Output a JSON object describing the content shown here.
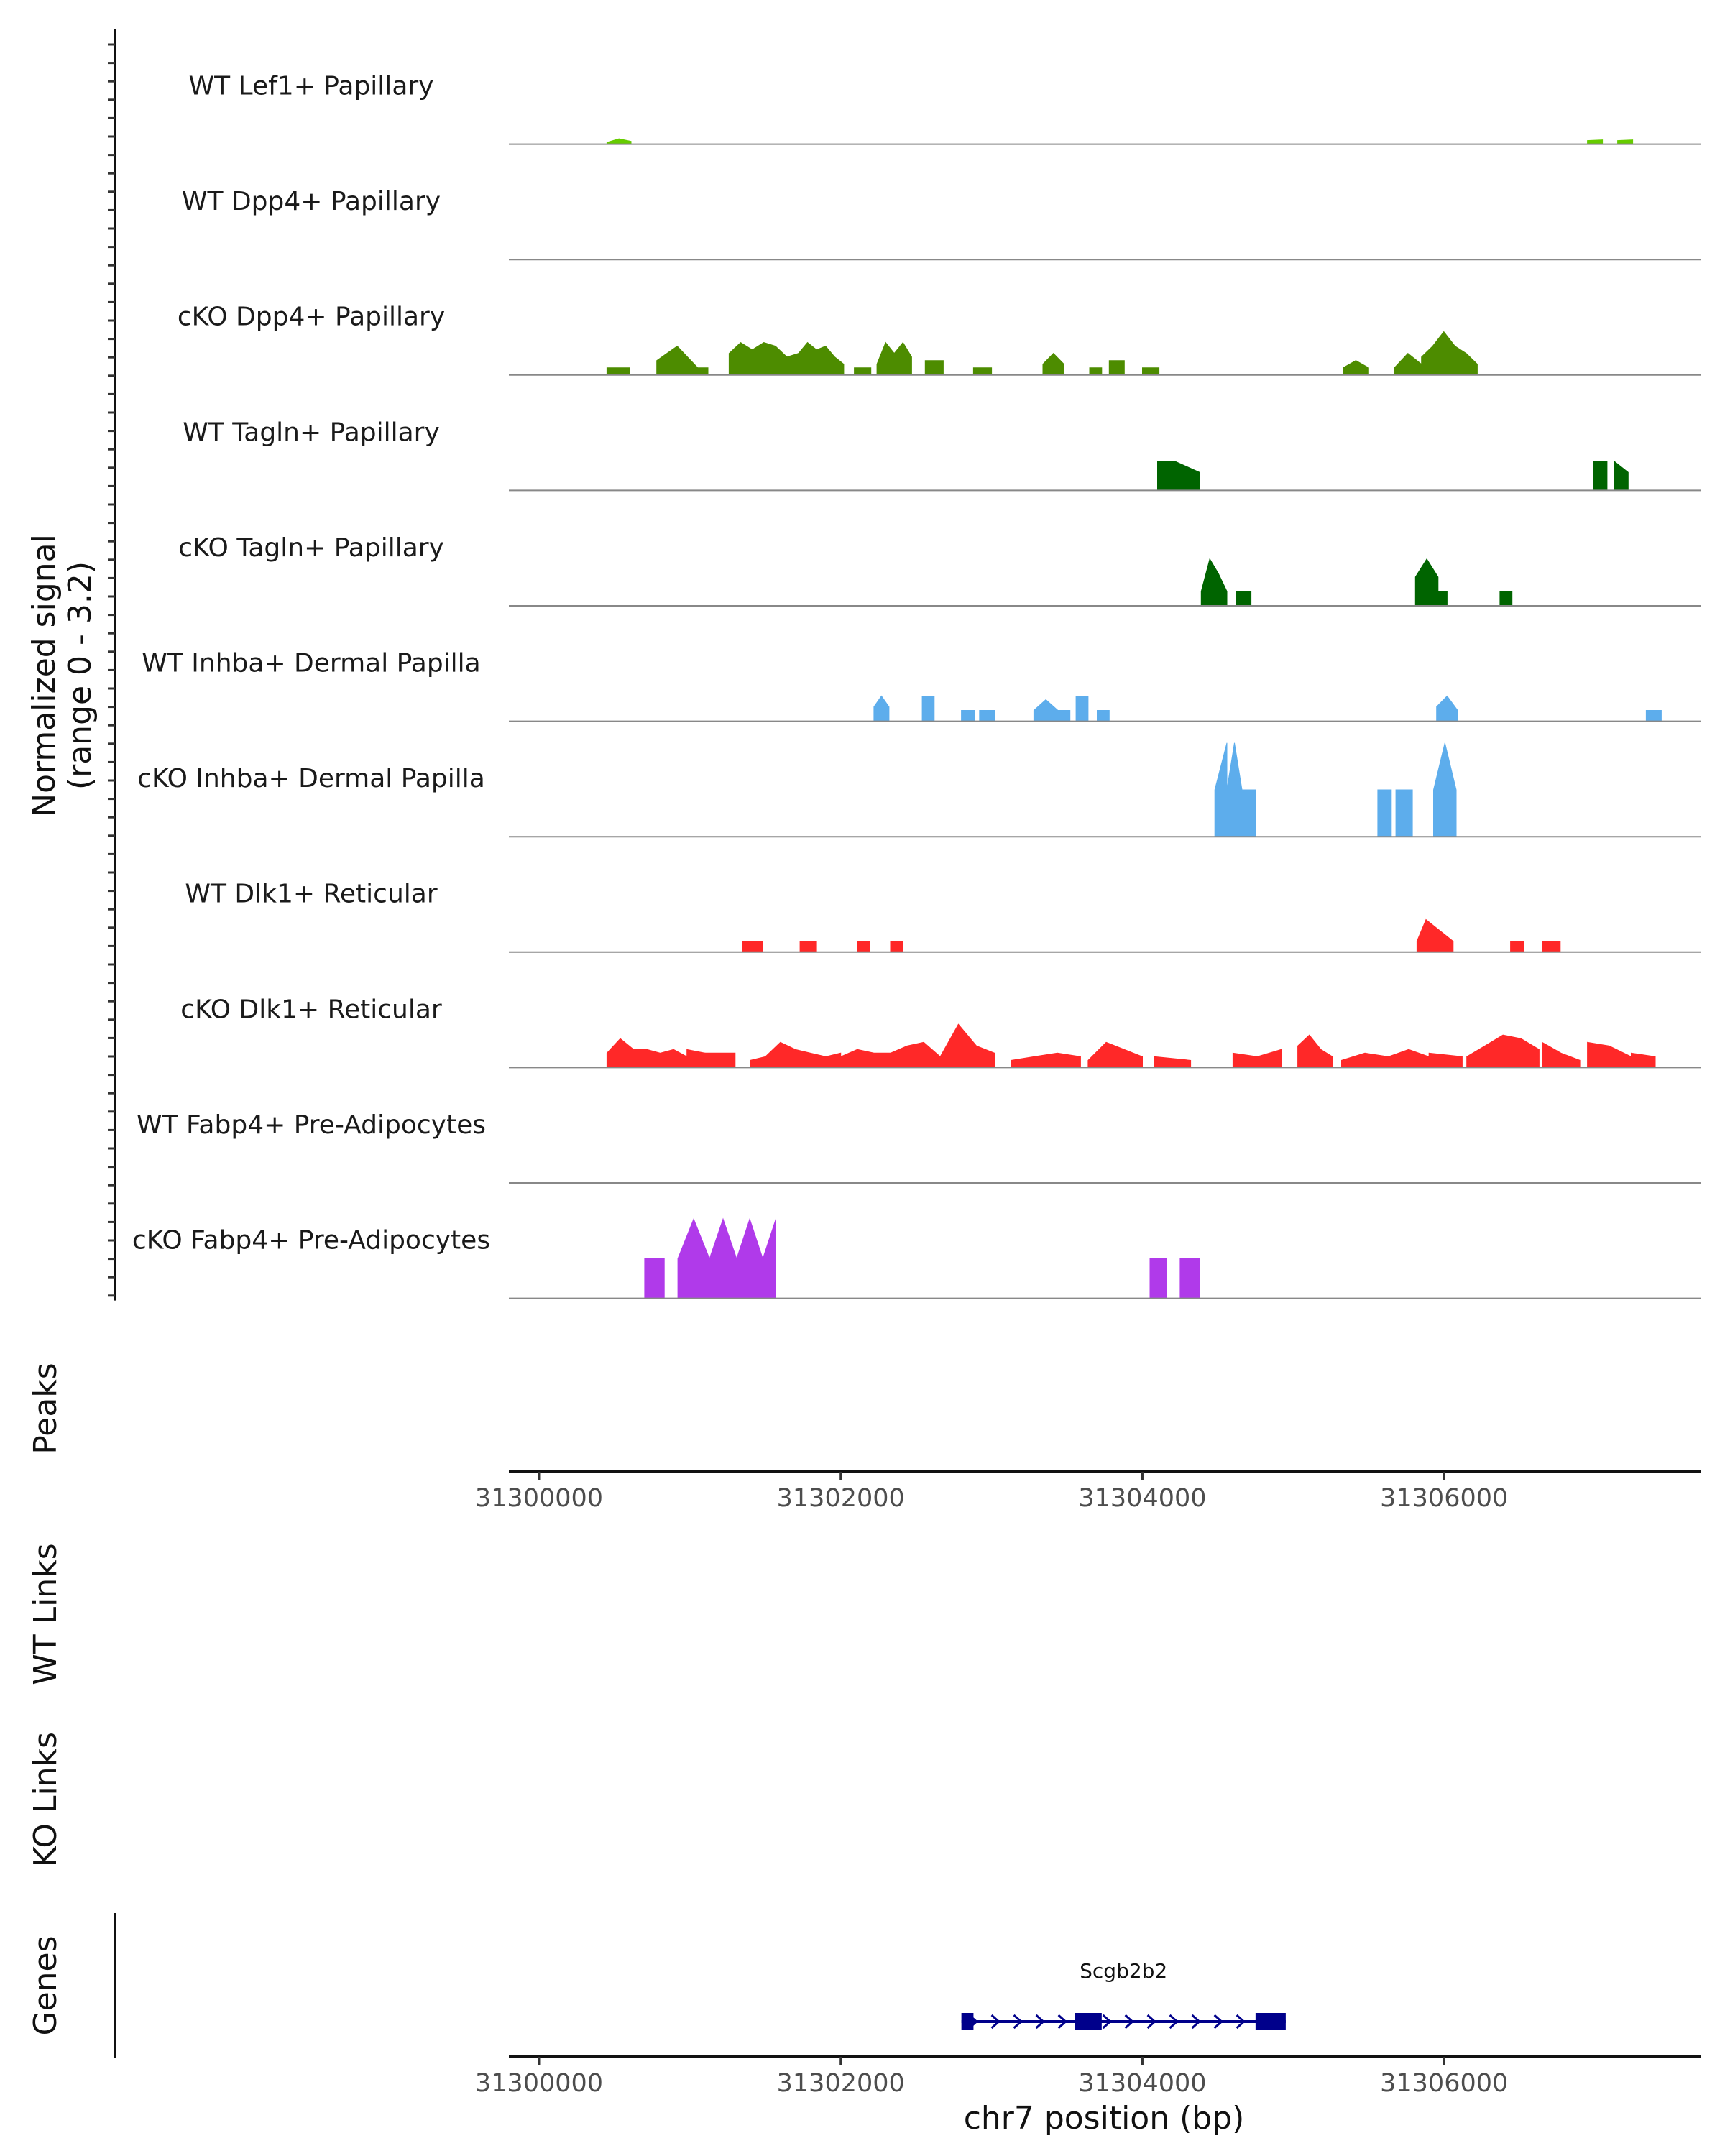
{
  "chart_data": {
    "type": "area",
    "title": "",
    "ylabel_line1": "Normalized signal",
    "ylabel_line2": "(range 0 - 3.2)",
    "ylim": [
      0,
      3.2
    ],
    "xlabel": "chr7 position (bp)",
    "xlim": [
      31299800,
      31307700
    ],
    "x_ticks": [
      31300000,
      31302000,
      31304000,
      31306000
    ],
    "x_tick_labels": [
      "31300000",
      "31302000",
      "31304000",
      "31306000"
    ],
    "panel_labels": {
      "peaks": "Peaks",
      "wt_links": "WT Links",
      "ko_links": "KO Links",
      "genes": "Genes"
    },
    "tracks": [
      {
        "name": "WT Lef1+ Papillary",
        "color": "#66CC00",
        "regions": [
          [
            31300450,
            31300610,
            [
              0.05,
              0.15,
              0.08
            ]
          ],
          [
            31306950,
            31307050,
            [
              0.1,
              0.12
            ]
          ],
          [
            31307150,
            31307250,
            [
              0.1,
              0.12
            ]
          ]
        ]
      },
      {
        "name": "WT Dpp4+ Papillary",
        "color": "#4D8C00",
        "regions": []
      },
      {
        "name": "cKO Dpp4+ Papillary",
        "color": "#4D8C00",
        "regions": [
          [
            31300450,
            31300600,
            [
              0.2,
              0.2
            ]
          ],
          [
            31300780,
            31301120,
            [
              0.4,
              0.6,
              0.8,
              0.5,
              0.2,
              0.2
            ]
          ],
          [
            31301260,
            31301720,
            [
              0.6,
              0.9,
              0.7,
              0.9,
              0.8,
              0.5,
              0.6
            ]
          ],
          [
            31301720,
            31302020,
            [
              0.6,
              0.9,
              0.7,
              0.8,
              0.5,
              0.3
            ]
          ],
          [
            31302090,
            31302200,
            [
              0.2,
              0.2
            ]
          ],
          [
            31302240,
            31302470,
            [
              0.3,
              0.9,
              0.6,
              0.9,
              0.5
            ]
          ],
          [
            31302560,
            31302680,
            [
              0.4,
              0.4
            ]
          ],
          [
            31302880,
            31303000,
            [
              0.2,
              0.2
            ]
          ],
          [
            31303340,
            31303480,
            [
              0.3,
              0.6,
              0.3
            ]
          ],
          [
            31303650,
            31303730,
            [
              0.2,
              0.2
            ]
          ],
          [
            31303780,
            31303880,
            [
              0.4,
              0.4
            ]
          ],
          [
            31304000,
            31304110,
            [
              0.2,
              0.2
            ]
          ],
          [
            31305330,
            31305500,
            [
              0.2,
              0.4,
              0.2
            ]
          ],
          [
            31305670,
            31305850,
            [
              0.2,
              0.6,
              0.3
            ]
          ],
          [
            31305850,
            31306220,
            [
              0.5,
              0.8,
              1.2,
              0.8,
              0.6,
              0.3
            ]
          ]
        ]
      },
      {
        "name": "WT Tagln+ Papillary",
        "color": "#006400",
        "regions": [
          [
            31304100,
            31304220,
            [
              0.8,
              0.8
            ]
          ],
          [
            31304220,
            31304380,
            [
              0.8,
              0.5
            ]
          ],
          [
            31306990,
            31307080,
            [
              0.8,
              0.8
            ]
          ],
          [
            31307130,
            31307220,
            [
              0.8,
              0.5
            ]
          ]
        ]
      },
      {
        "name": "cKO Tagln+ Papillary",
        "color": "#006400",
        "regions": [
          [
            31304390,
            31304560,
            [
              0.4,
              1.3,
              0.9,
              0.4
            ]
          ],
          [
            31304620,
            31304720,
            [
              0.4,
              0.4
            ]
          ],
          [
            31305810,
            31305960,
            [
              0.8,
              1.3,
              0.8
            ]
          ],
          [
            31305960,
            31306020,
            [
              0.4,
              0.4
            ]
          ],
          [
            31306370,
            31306450,
            [
              0.4,
              0.4
            ]
          ]
        ]
      },
      {
        "name": "WT Inhba+ Dermal Papilla",
        "color": "#5DADEC",
        "regions": [
          [
            31302220,
            31302320,
            [
              0.4,
              0.7,
              0.4
            ]
          ],
          [
            31302540,
            31302620,
            [
              0.7,
              0.7
            ]
          ],
          [
            31302800,
            31302890,
            [
              0.3,
              0.3
            ]
          ],
          [
            31302920,
            31303020,
            [
              0.3,
              0.3
            ]
          ],
          [
            31303280,
            31303520,
            [
              0.3,
              0.6,
              0.3,
              0.3
            ]
          ],
          [
            31303560,
            31303640,
            [
              0.7,
              0.7
            ]
          ],
          [
            31303700,
            31303780,
            [
              0.3,
              0.3
            ]
          ],
          [
            31305950,
            31306090,
            [
              0.4,
              0.7,
              0.3
            ]
          ],
          [
            31307340,
            31307440,
            [
              0.3,
              0.3
            ]
          ]
        ]
      },
      {
        "name": "cKO Inhba+ Dermal Papilla",
        "color": "#5DADEC",
        "regions": [
          [
            31304480,
            31304560,
            [
              1.3,
              2.6
            ]
          ],
          [
            31304560,
            31304660,
            [
              1.3,
              2.6,
              1.3
            ]
          ],
          [
            31304660,
            31304750,
            [
              1.3,
              1.3
            ]
          ],
          [
            31305560,
            31305650,
            [
              1.3,
              1.3
            ]
          ],
          [
            31305680,
            31305790,
            [
              1.3,
              1.3
            ]
          ],
          [
            31305930,
            31306080,
            [
              1.3,
              2.6,
              1.3
            ]
          ]
        ]
      },
      {
        "name": "WT Dlk1+ Reticular",
        "color": "#FF2828",
        "regions": [
          [
            31301350,
            31301480,
            [
              0.3,
              0.3
            ]
          ],
          [
            31301730,
            31301840,
            [
              0.3,
              0.3
            ]
          ],
          [
            31302110,
            31302190,
            [
              0.3,
              0.3
            ]
          ],
          [
            31302330,
            31302410,
            [
              0.3,
              0.3
            ]
          ],
          [
            31305820,
            31306060,
            [
              0.3,
              0.9,
              0.7,
              0.5,
              0.3
            ]
          ],
          [
            31306440,
            31306530,
            [
              0.3,
              0.3
            ]
          ],
          [
            31306650,
            31306770,
            [
              0.3,
              0.3
            ]
          ]
        ]
      },
      {
        "name": "cKO Dlk1+ Reticular",
        "color": "#FF2828",
        "regions": [
          [
            31300450,
            31300980,
            [
              0.4,
              0.8,
              0.5,
              0.5,
              0.4,
              0.5,
              0.3
            ]
          ],
          [
            31300980,
            31301100,
            [
              0.5,
              0.4
            ]
          ],
          [
            31301100,
            31301300,
            [
              0.4,
              0.4
            ]
          ],
          [
            31301400,
            31302000,
            [
              0.2,
              0.3,
              0.7,
              0.5,
              0.4,
              0.3,
              0.4
            ]
          ],
          [
            31302000,
            31302660,
            [
              0.3,
              0.5,
              0.4,
              0.4,
              0.6,
              0.7,
              0.3
            ]
          ],
          [
            31302660,
            31303020,
            [
              0.3,
              1.2,
              0.6,
              0.4
            ]
          ],
          [
            31303130,
            31303590,
            [
              0.2,
              0.3,
              0.4,
              0.3
            ]
          ],
          [
            31303640,
            31304000,
            [
              0.2,
              0.7,
              0.5,
              0.3
            ]
          ],
          [
            31304080,
            31304320,
            [
              0.3,
              0.2
            ]
          ],
          [
            31304600,
            31304920,
            [
              0.4,
              0.3,
              0.5
            ]
          ],
          [
            31305030,
            31305260,
            [
              0.6,
              0.9,
              0.5,
              0.3
            ]
          ],
          [
            31305320,
            31305630,
            [
              0.2,
              0.4,
              0.3
            ]
          ],
          [
            31305630,
            31305900,
            [
              0.3,
              0.5,
              0.3
            ]
          ],
          [
            31305900,
            31306120,
            [
              0.4,
              0.3
            ]
          ],
          [
            31306150,
            31306630,
            [
              0.3,
              0.6,
              0.9,
              0.8,
              0.5
            ]
          ],
          [
            31306650,
            31306900,
            [
              0.7,
              0.4,
              0.2
            ]
          ],
          [
            31306950,
            31307240,
            [
              0.7,
              0.6,
              0.3
            ]
          ],
          [
            31307240,
            31307400,
            [
              0.4,
              0.3
            ]
          ]
        ]
      },
      {
        "name": "WT Fabp4+ Pre-Adipocytes",
        "color": "#B03AEA",
        "regions": []
      },
      {
        "name": "cKO Fabp4+ Pre-Adipocytes",
        "color": "#B03AEA",
        "regions": [
          [
            31300700,
            31300830,
            [
              1.1,
              1.1
            ]
          ],
          [
            31300920,
            31301130,
            [
              1.1,
              2.2,
              1.1
            ]
          ],
          [
            31301130,
            31301310,
            [
              1.1,
              2.2,
              1.1
            ]
          ],
          [
            31301310,
            31301570,
            [
              1.1,
              2.2,
              1.1,
              2.2
            ]
          ],
          [
            31304050,
            31304160,
            [
              1.1,
              1.1
            ]
          ],
          [
            31304250,
            31304380,
            [
              1.1,
              1.1
            ]
          ]
        ]
      }
    ],
    "gene": {
      "name": "Scgb2b2",
      "color": "#00008B",
      "strand": "+",
      "start": 31302800,
      "end": 31304950,
      "exons": [
        [
          31302800,
          31302880
        ],
        [
          31303550,
          31303730
        ],
        [
          31304750,
          31304950
        ]
      ]
    }
  }
}
